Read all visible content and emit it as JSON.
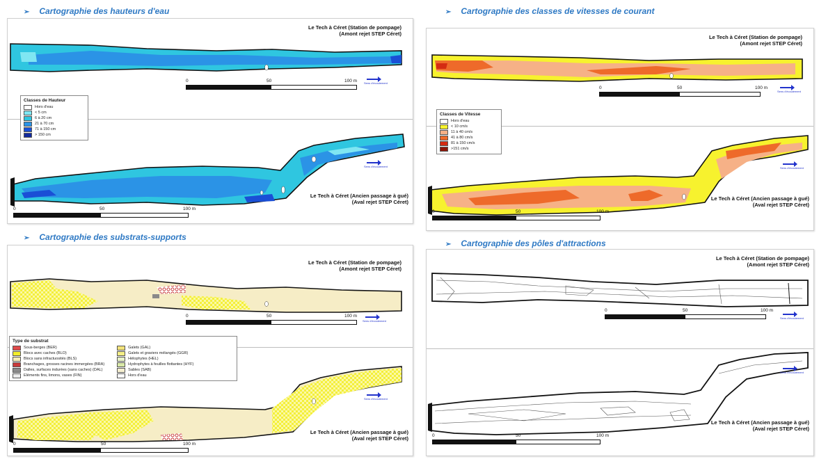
{
  "sections": {
    "hauteurs": "Cartographie des hauteurs d'eau",
    "vitesses": "Cartographie des classes de vitesses de courant",
    "substrats": "Cartographie des substrats-supports",
    "poles": "Cartographie des pôles d'attractions"
  },
  "site_upstream": {
    "line1": "Le Tech à Céret (Station de pompage)",
    "line2": "(Amont rejet STEP Céret)"
  },
  "site_downstream": {
    "line1": "Le Tech à Céret (Ancien passage à gué)",
    "line2": "(Aval rejet STEP Céret)"
  },
  "scale": {
    "t0": "0",
    "t50": "50",
    "t100": "100 m"
  },
  "flow_label": "Sens d'écoulement",
  "legend_hauteur": {
    "title": "Classes de Hauteur",
    "items": [
      {
        "label": "Hors d'eau",
        "color": "#ffffff"
      },
      {
        "label": "< 5 cm",
        "color": "#7fe6f2"
      },
      {
        "label": "6 à 20 cm",
        "color": "#2fc6e0"
      },
      {
        "label": "21 à 70 cm",
        "color": "#2b93e6"
      },
      {
        "label": "71 à 150 cm",
        "color": "#1a4fd6"
      },
      {
        "label": "> 150 cm",
        "color": "#122a9e"
      }
    ]
  },
  "legend_vitesse": {
    "title": "Classes de Vitesse",
    "items": [
      {
        "label": "Hors d'eau",
        "color": "#ffffff"
      },
      {
        "label": "< 10 cm/s",
        "color": "#f7f22e"
      },
      {
        "label": "11 à 40 cm/s",
        "color": "#f6b187"
      },
      {
        "label": "41 à 80 cm/s",
        "color": "#ee6a2a"
      },
      {
        "label": "81 à 150 cm/s",
        "color": "#d42b12"
      },
      {
        "label": ">151 cm/s",
        "color": "#8e1508"
      }
    ]
  },
  "legend_substrat": {
    "title": "Type de substrat",
    "col1": [
      {
        "label": "Sous-berges (BER)",
        "color": "#e04a4a"
      },
      {
        "label": "Blocs avec caches (BLO)",
        "color": "#f3ee2a"
      },
      {
        "label": "Blocs sans infractuosités (BLS)",
        "color": "#f6edb7"
      },
      {
        "label": "Branchages, grosses racines immergées (BRA)",
        "color": "#c83a3a"
      },
      {
        "label": "Dalles, surfaces indurées (sans caches) (DAL)",
        "color": "#8a8a8a"
      },
      {
        "label": "Eléments fins, limons, vases (FIN)",
        "color": "#ececec"
      }
    ],
    "col2": [
      {
        "label": "Galets (GAL)",
        "color": "#f2e27a"
      },
      {
        "label": "Galets et graviers mélangés (GGR)",
        "color": "#f5ef86"
      },
      {
        "label": "Hélophytes (HEL)",
        "color": "#e9f3c9"
      },
      {
        "label": "Hydrophytes à feuilles flottantes (HYF)",
        "color": "#d9e9a8"
      },
      {
        "label": "Sables (SAB)",
        "color": "#f6efd0"
      },
      {
        "label": "Hors d'eau",
        "color": "#ffffff"
      }
    ]
  },
  "colors": {
    "title_blue": "#2e79c4",
    "outline": "#111111",
    "sand": "#f6edc6",
    "checker_yellow": "#f1ec2e"
  }
}
